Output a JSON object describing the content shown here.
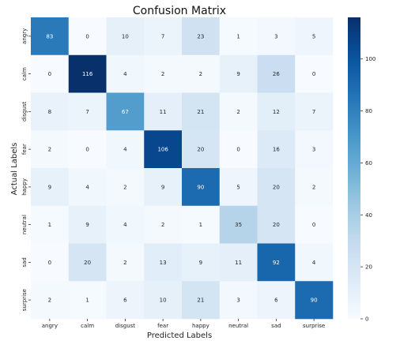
{
  "chart_data": {
    "type": "heatmap",
    "title": "Confusion Matrix",
    "xlabel": "Predicted Labels",
    "ylabel": "Actual Labels",
    "x_categories": [
      "angry",
      "calm",
      "disgust",
      "fear",
      "happy",
      "neutral",
      "sad",
      "surprise"
    ],
    "y_categories": [
      "angry",
      "calm",
      "disgust",
      "fear",
      "happy",
      "neutral",
      "sad",
      "surprise"
    ],
    "values": [
      [
        83,
        0,
        10,
        7,
        23,
        1,
        3,
        5
      ],
      [
        0,
        116,
        4,
        2,
        2,
        9,
        26,
        0
      ],
      [
        8,
        7,
        67,
        11,
        21,
        2,
        12,
        7
      ],
      [
        2,
        0,
        4,
        106,
        20,
        0,
        16,
        3
      ],
      [
        9,
        4,
        2,
        9,
        90,
        5,
        20,
        2
      ],
      [
        1,
        9,
        4,
        2,
        1,
        35,
        20,
        0
      ],
      [
        0,
        20,
        2,
        13,
        9,
        11,
        92,
        4
      ],
      [
        2,
        1,
        6,
        10,
        21,
        3,
        6,
        90
      ]
    ],
    "colormap": "Blues",
    "vmin": 0,
    "vmax": 116,
    "colorbar_ticks": [
      0,
      20,
      40,
      60,
      80,
      100
    ],
    "grid": false,
    "colorbar_placement": "right"
  }
}
